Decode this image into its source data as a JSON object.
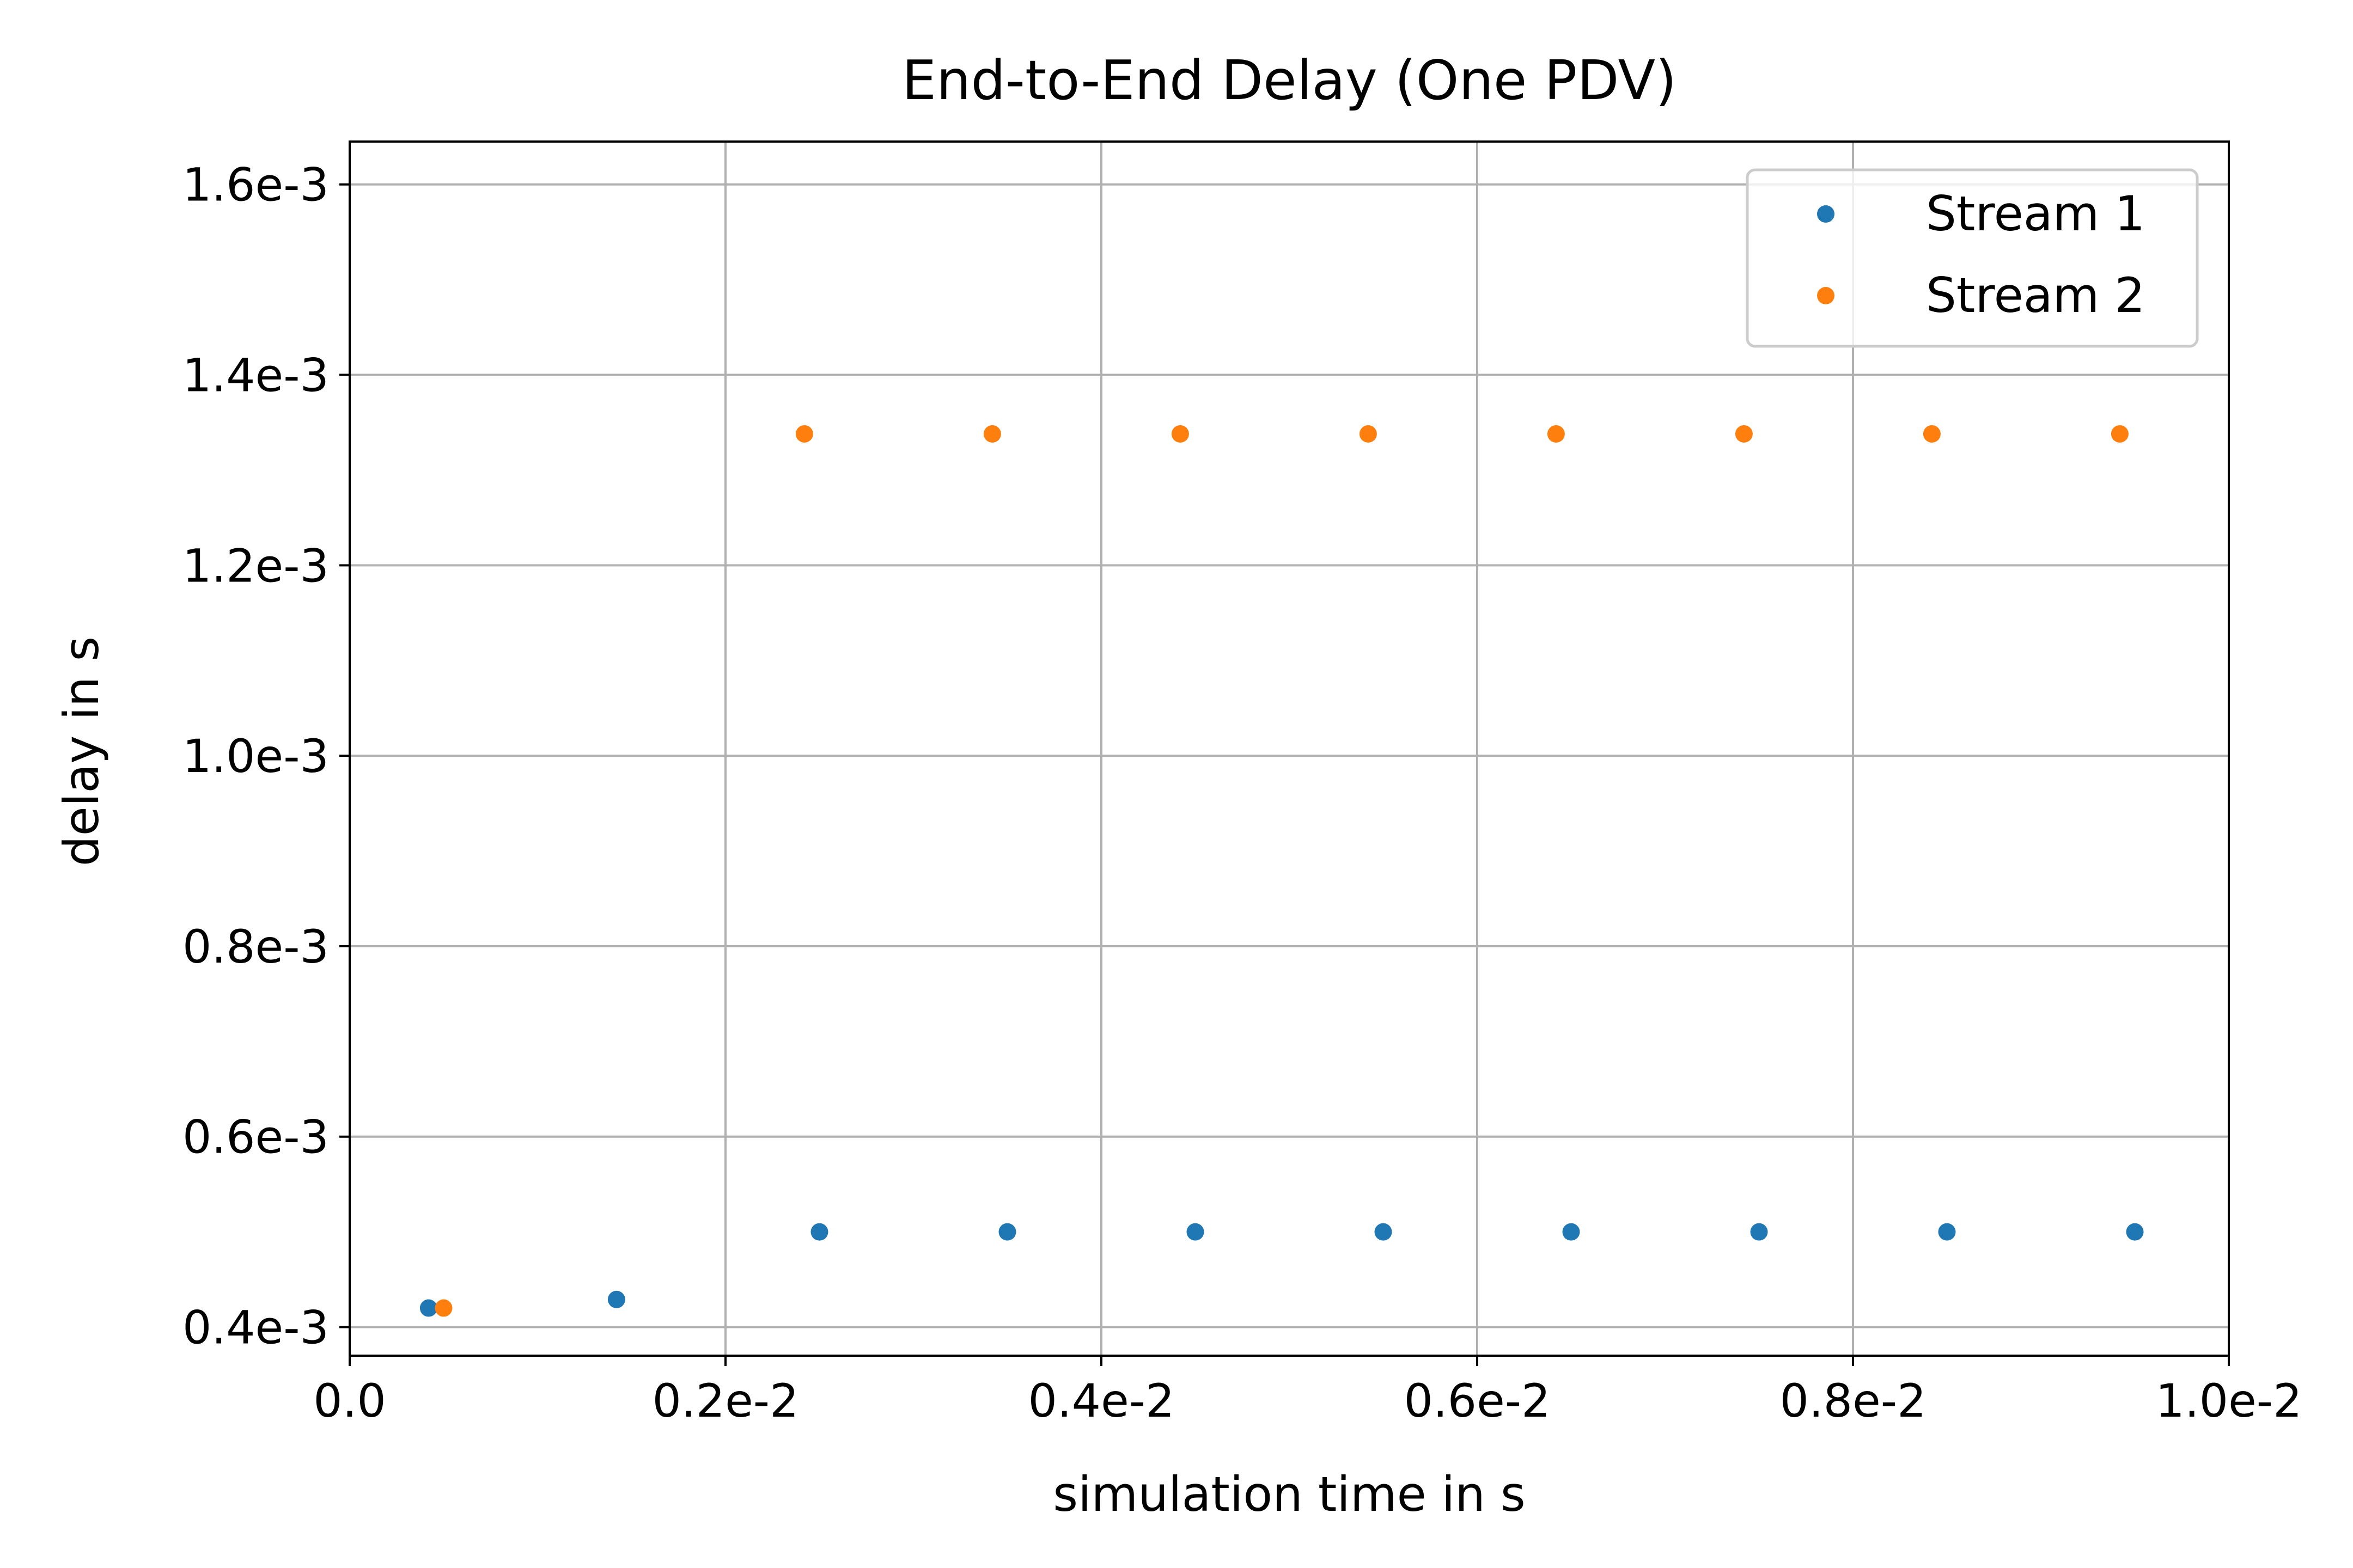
{
  "chart_data": {
    "type": "scatter",
    "title": "End-to-End Delay (One PDV)",
    "xlabel": "simulation time in s",
    "ylabel": "delay in s",
    "xlim": [
      0.0,
      0.01
    ],
    "ylim": [
      0.00037,
      0.001645
    ],
    "x_ticks": [
      0.0,
      0.002,
      0.004,
      0.006,
      0.008,
      0.01
    ],
    "x_tick_labels": [
      "0.0",
      "0.2e-2",
      "0.4e-2",
      "0.6e-2",
      "0.8e-2",
      "1.0e-2"
    ],
    "y_ticks": [
      0.0004,
      0.0006,
      0.0008,
      0.001,
      0.0012,
      0.0014,
      0.0016
    ],
    "y_tick_labels": [
      "0.4e-3",
      "0.6e-3",
      "0.8e-3",
      "1.0e-3",
      "1.2e-3",
      "1.4e-3",
      "1.6e-3"
    ],
    "grid": true,
    "legend_position": "top-right",
    "series": [
      {
        "name": "Stream 1",
        "color": "#1f77b4",
        "x": [
          0.00042,
          0.00142,
          0.0025,
          0.0035,
          0.0045,
          0.0055,
          0.0065,
          0.0075,
          0.0085,
          0.0095
        ],
        "y": [
          0.00042,
          0.000429,
          0.0005,
          0.0005,
          0.0005,
          0.0005,
          0.0005,
          0.0005,
          0.0005,
          0.0005
        ]
      },
      {
        "name": "Stream 2",
        "color": "#ff7f0e",
        "x": [
          0.0005,
          0.00242,
          0.00342,
          0.00442,
          0.00542,
          0.00642,
          0.00742,
          0.00842,
          0.00942
        ],
        "y": [
          0.00042,
          0.001338,
          0.001338,
          0.001338,
          0.001338,
          0.001338,
          0.001338,
          0.001338,
          0.001338
        ]
      }
    ]
  }
}
